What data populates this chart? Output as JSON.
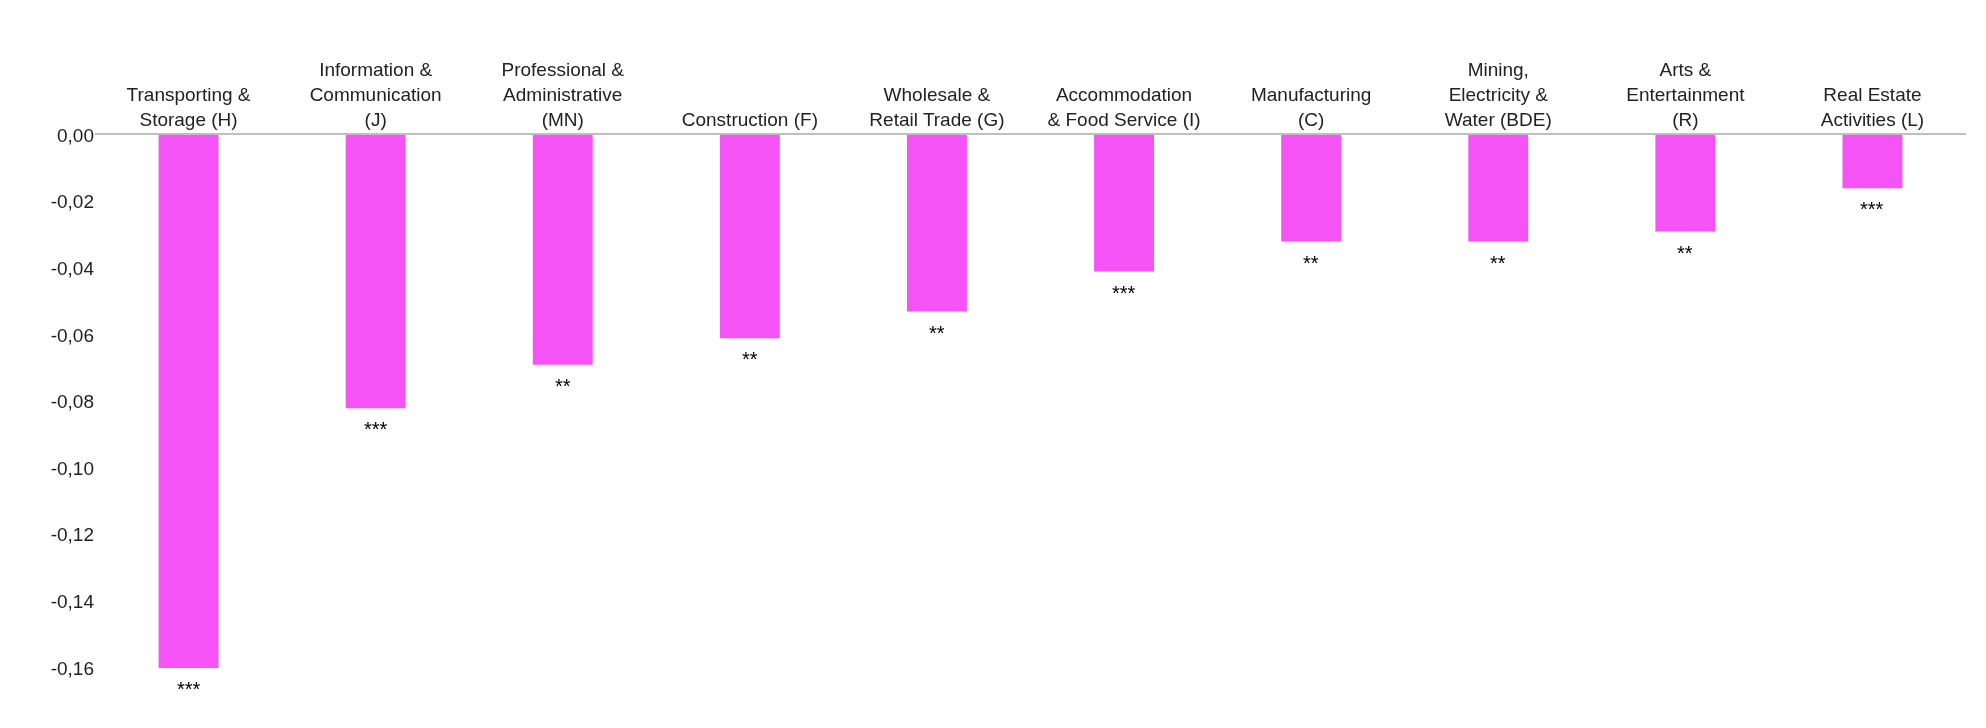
{
  "chart_data": {
    "type": "bar",
    "categories": [
      "Transporting &\nStorage (H)",
      "Information &\nCommunication\n(J)",
      "Professional &\nAdministrative\n(MN)",
      "Construction (F)",
      "Wholesale &\nRetail Trade (G)",
      "Accommodation\n& Food Service (I)",
      "Manufacturing\n(C)",
      "Mining,\nElectricity &\nWater (BDE)",
      "Arts &\nEntertainment\n(R)",
      "Real Estate\nActivities (L)"
    ],
    "values": [
      -0.16,
      -0.082,
      -0.069,
      -0.061,
      -0.053,
      -0.041,
      -0.032,
      -0.032,
      -0.029,
      -0.016
    ],
    "color": "#f553f5",
    "ylim": [
      -0.16,
      0
    ],
    "yticks": [
      {
        "value": 0,
        "label": "0,00"
      },
      {
        "value": -0.02,
        "label": "-0,02"
      },
      {
        "value": -0.04,
        "label": "-0,04"
      },
      {
        "value": -0.06,
        "label": "-0,06"
      },
      {
        "value": -0.08,
        "label": "-0,08"
      },
      {
        "value": -0.1,
        "label": "-0,10"
      },
      {
        "value": -0.12,
        "label": "-0,12"
      },
      {
        "value": -0.14,
        "label": "-0,14"
      },
      {
        "value": -0.16,
        "label": "-0,16"
      }
    ],
    "annotations": [
      {
        "text": "***",
        "x": "Transporting &\nStorage (H)",
        "y": -0.16
      },
      {
        "text": "***",
        "x": "Information &\nCommunication\n(J)",
        "y": -0.082
      },
      {
        "text": "**",
        "x": "Professional &\nAdministrative\n(MN)",
        "y": -0.069
      },
      {
        "text": "**",
        "x": "Construction (F)",
        "y": -0.061
      },
      {
        "text": "**",
        "x": "Wholesale &\nRetail Trade (G)",
        "y": -0.053
      },
      {
        "text": "***",
        "x": "Accommodation\n& Food Service (I)",
        "y": -0.041
      },
      {
        "text": "**",
        "x": "Manufacturing\n(C)",
        "y": -0.032
      },
      {
        "text": "**",
        "x": "Mining,\nElectricity &\nWater (BDE)",
        "y": -0.032
      },
      {
        "text": "**",
        "x": "Arts &\nEntertainment\n(R)",
        "y": -0.029
      },
      {
        "text": "***",
        "x": "Real Estate\nActivities (L)",
        "y": -0.016
      }
    ]
  }
}
